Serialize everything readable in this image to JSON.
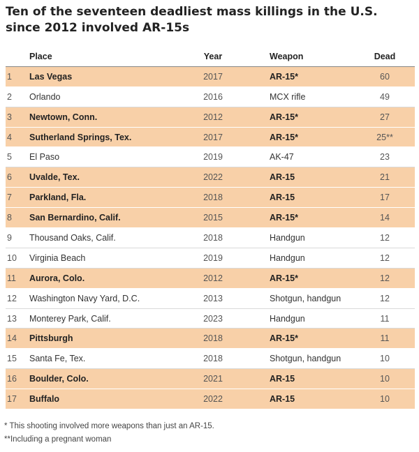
{
  "title": "Ten of the seventeen deadliest mass killings in the U.S. since 2012 involved AR-15s",
  "chart_data": {
    "type": "table",
    "title": "Ten of the seventeen deadliest mass killings in the U.S. since 2012 involved AR-15s",
    "columns": [
      "",
      "Place",
      "Year",
      "Weapon",
      "Dead"
    ],
    "highlight_color": "#f8d0a8",
    "rows": [
      {
        "rank": "1",
        "place": "Las Vegas",
        "year": "2017",
        "weapon": "AR-15*",
        "dead": "60",
        "highlight": true
      },
      {
        "rank": "2",
        "place": "Orlando",
        "year": "2016",
        "weapon": "MCX rifle",
        "dead": "49",
        "highlight": false
      },
      {
        "rank": "3",
        "place": "Newtown, Conn.",
        "year": "2012",
        "weapon": "AR-15*",
        "dead": "27",
        "highlight": true
      },
      {
        "rank": "4",
        "place": "Sutherland Springs, Tex.",
        "year": "2017",
        "weapon": "AR-15*",
        "dead": "25**",
        "highlight": true
      },
      {
        "rank": "5",
        "place": "El Paso",
        "year": "2019",
        "weapon": "AK-47",
        "dead": "23",
        "highlight": false
      },
      {
        "rank": "6",
        "place": "Uvalde, Tex.",
        "year": "2022",
        "weapon": "AR-15",
        "dead": "21",
        "highlight": true
      },
      {
        "rank": "7",
        "place": "Parkland, Fla.",
        "year": "2018",
        "weapon": "AR-15",
        "dead": "17",
        "highlight": true
      },
      {
        "rank": "8",
        "place": "San Bernardino, Calif.",
        "year": "2015",
        "weapon": "AR-15*",
        "dead": "14",
        "highlight": true
      },
      {
        "rank": "9",
        "place": "Thousand Oaks, Calif.",
        "year": "2018",
        "weapon": "Handgun",
        "dead": "12",
        "highlight": false
      },
      {
        "rank": "10",
        "place": "Virginia Beach",
        "year": "2019",
        "weapon": "Handgun",
        "dead": "12",
        "highlight": false
      },
      {
        "rank": "11",
        "place": "Aurora, Colo.",
        "year": "2012",
        "weapon": "AR-15*",
        "dead": "12",
        "highlight": true
      },
      {
        "rank": "12",
        "place": "Washington Navy Yard, D.C.",
        "year": "2013",
        "weapon": "Shotgun, handgun",
        "dead": "12",
        "highlight": false
      },
      {
        "rank": "13",
        "place": "Monterey Park, Calif.",
        "year": "2023",
        "weapon": "Handgun",
        "dead": "11",
        "highlight": false
      },
      {
        "rank": "14",
        "place": "Pittsburgh",
        "year": "2018",
        "weapon": "AR-15*",
        "dead": "11",
        "highlight": true
      },
      {
        "rank": "15",
        "place": "Santa Fe, Tex.",
        "year": "2018",
        "weapon": "Shotgun, handgun",
        "dead": "10",
        "highlight": false
      },
      {
        "rank": "16",
        "place": "Boulder, Colo.",
        "year": "2021",
        "weapon": "AR-15",
        "dead": "10",
        "highlight": true
      },
      {
        "rank": "17",
        "place": "Buffalo",
        "year": "2022",
        "weapon": "AR-15",
        "dead": "10",
        "highlight": true
      }
    ]
  },
  "notes": [
    "*  This shooting involved more weapons than just an AR-15.",
    "**Including a pregnant woman"
  ]
}
